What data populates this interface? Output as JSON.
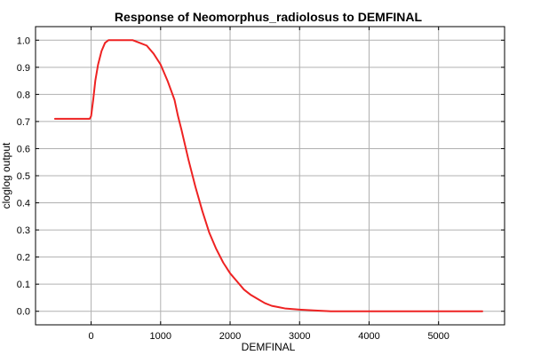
{
  "chart_data": {
    "type": "line",
    "title": "Response of Neomorphus_radiolosus to DEMFINAL",
    "xlabel": "DEMFINAL",
    "ylabel": "cloglog output",
    "xlim": [
      -800,
      5950
    ],
    "ylim": [
      -0.05,
      1.05
    ],
    "x_ticks": [
      0,
      1000,
      2000,
      3000,
      4000,
      5000
    ],
    "y_ticks": [
      0.0,
      0.1,
      0.2,
      0.3,
      0.4,
      0.5,
      0.6,
      0.7,
      0.8,
      0.9,
      1.0
    ],
    "x_tick_labels": [
      "0",
      "1000",
      "2000",
      "3000",
      "4000",
      "5000"
    ],
    "y_tick_labels": [
      "0.0",
      "0.1",
      "0.2",
      "0.3",
      "0.4",
      "0.5",
      "0.6",
      "0.7",
      "0.8",
      "0.9",
      "1.0"
    ],
    "grid": true,
    "series_color": "#ee2222",
    "series": [
      {
        "points": [
          [
            -520,
            0.71
          ],
          [
            -20,
            0.71
          ],
          [
            0,
            0.72
          ],
          [
            30,
            0.78
          ],
          [
            60,
            0.85
          ],
          [
            100,
            0.91
          ],
          [
            150,
            0.96
          ],
          [
            200,
            0.99
          ],
          [
            250,
            1.0
          ],
          [
            400,
            1.0
          ],
          [
            600,
            1.0
          ],
          [
            700,
            0.99
          ],
          [
            800,
            0.98
          ],
          [
            900,
            0.95
          ],
          [
            1000,
            0.91
          ],
          [
            1100,
            0.85
          ],
          [
            1200,
            0.78
          ],
          [
            1250,
            0.72
          ],
          [
            1300,
            0.67
          ],
          [
            1400,
            0.56
          ],
          [
            1500,
            0.46
          ],
          [
            1600,
            0.37
          ],
          [
            1700,
            0.29
          ],
          [
            1800,
            0.23
          ],
          [
            1900,
            0.18
          ],
          [
            2000,
            0.14
          ],
          [
            2100,
            0.11
          ],
          [
            2200,
            0.08
          ],
          [
            2300,
            0.06
          ],
          [
            2400,
            0.045
          ],
          [
            2500,
            0.03
          ],
          [
            2600,
            0.02
          ],
          [
            2700,
            0.015
          ],
          [
            2800,
            0.01
          ],
          [
            3000,
            0.006
          ],
          [
            3200,
            0.003
          ],
          [
            3450,
            0.0
          ],
          [
            4000,
            0.0
          ],
          [
            5000,
            0.0
          ],
          [
            5630,
            0.0
          ]
        ]
      }
    ]
  }
}
